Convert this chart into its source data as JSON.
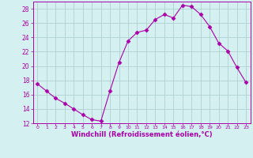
{
  "x": [
    0,
    1,
    2,
    3,
    4,
    5,
    6,
    7,
    8,
    9,
    10,
    11,
    12,
    13,
    14,
    15,
    16,
    17,
    18,
    19,
    20,
    21,
    22,
    23
  ],
  "y": [
    17.5,
    16.5,
    15.5,
    14.8,
    14.0,
    13.2,
    12.5,
    12.3,
    16.5,
    20.5,
    23.5,
    24.7,
    25.0,
    26.5,
    27.2,
    26.7,
    28.5,
    28.3,
    27.2,
    25.5,
    23.2,
    22.1,
    19.8,
    17.7
  ],
  "line_color": "#aa00aa",
  "marker": "D",
  "marker_size": 2.5,
  "bg_color": "#d4f0f0",
  "grid_color": "#aacccc",
  "xlabel": "Windchill (Refroidissement éolien,°C)",
  "xlabel_color": "#aa00aa",
  "tick_color": "#aa00aa",
  "ylim": [
    12,
    29
  ],
  "xlim": [
    -0.5,
    23.5
  ],
  "yticks": [
    12,
    14,
    16,
    18,
    20,
    22,
    24,
    26,
    28
  ],
  "xticks": [
    0,
    1,
    2,
    3,
    4,
    5,
    6,
    7,
    8,
    9,
    10,
    11,
    12,
    13,
    14,
    15,
    16,
    17,
    18,
    19,
    20,
    21,
    22,
    23
  ],
  "spine_color": "#aa00aa",
  "fig_width": 3.2,
  "fig_height": 2.0,
  "dpi": 100
}
